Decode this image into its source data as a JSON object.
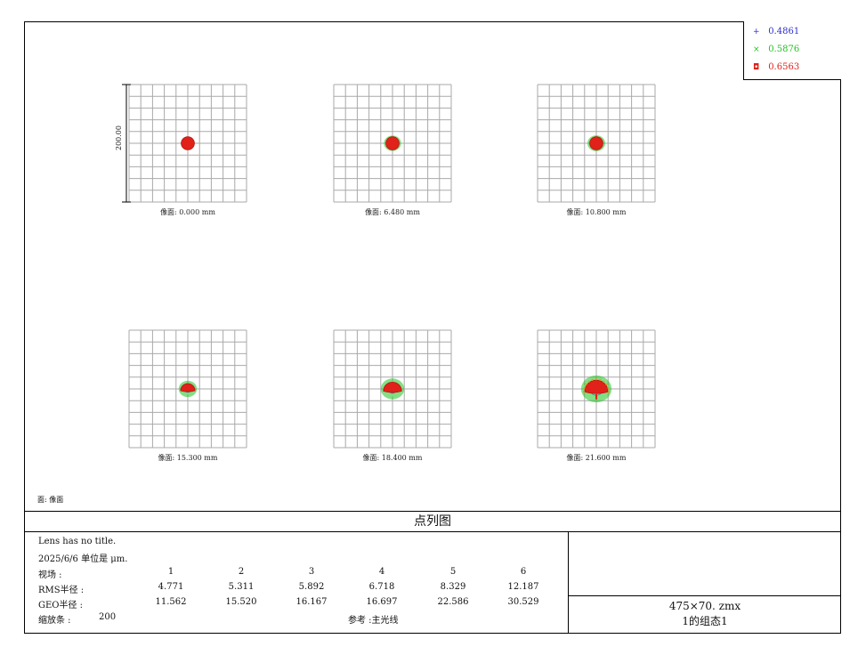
{
  "legend": [
    {
      "symbol": "+",
      "label": "0.4861",
      "color": "#2f2fd0"
    },
    {
      "symbol": "×",
      "label": "0.5876",
      "color": "#22c322"
    },
    {
      "symbol": "◘",
      "label": "0.6563",
      "color": "#e0221a"
    }
  ],
  "scale_label": "200.00",
  "surface_label": "面: 像面",
  "plot_title": "点列图",
  "chart_data": {
    "type": "scatter",
    "title": "点列图",
    "scale_bar_um": 200.0,
    "grid_divisions": 10,
    "wavelengths": [
      "0.4861",
      "0.5876",
      "0.6563"
    ],
    "fields": [
      {
        "label": "像面: 0.000 mm",
        "image_height_mm": 0.0,
        "rms_radius_um": 4.771,
        "geo_radius_um": 11.562
      },
      {
        "label": "像面: 6.480 mm",
        "image_height_mm": 6.48,
        "rms_radius_um": 5.311,
        "geo_radius_um": 15.52
      },
      {
        "label": "像面: 10.800 mm",
        "image_height_mm": 10.8,
        "rms_radius_um": 5.892,
        "geo_radius_um": 16.167
      },
      {
        "label": "像面: 15.300 mm",
        "image_height_mm": 15.3,
        "rms_radius_um": 6.718,
        "geo_radius_um": 16.697
      },
      {
        "label": "像面: 18.400 mm",
        "image_height_mm": 18.4,
        "rms_radius_um": 8.329,
        "geo_radius_um": 22.586
      },
      {
        "label": "像面: 21.600 mm",
        "image_height_mm": 21.6,
        "rms_radius_um": 12.187,
        "geo_radius_um": 30.529
      }
    ]
  },
  "info": {
    "lens_title": "Lens has no title.",
    "date_units": "2025/6/6  单位是 μm.",
    "field_label": "视场    :",
    "field_numbers": [
      "1",
      "2",
      "3",
      "4",
      "5",
      "6"
    ],
    "rms_label": "RMS半径 :",
    "rms_values": [
      "4.771",
      "5.311",
      "5.892",
      "6.718",
      "8.329",
      "12.187"
    ],
    "geo_label": "GEO半径 :",
    "geo_values": [
      "11.562",
      "15.520",
      "16.167",
      "16.697",
      "22.586",
      "30.529"
    ],
    "scale_label": "缩放条  :",
    "scale_value": "200",
    "reference": "参考  :主光线"
  },
  "file": {
    "name": "475×70. zmx",
    "config": "1的组态1"
  }
}
